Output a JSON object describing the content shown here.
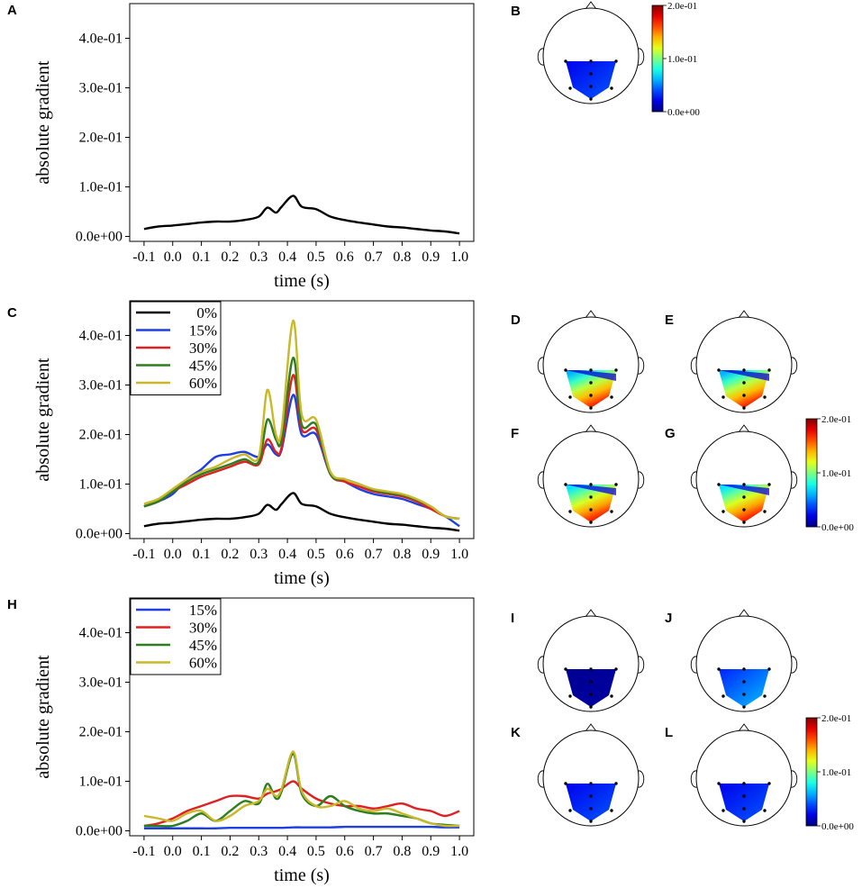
{
  "panels": {
    "A": "A",
    "B": "B",
    "C": "C",
    "D": "D",
    "E": "E",
    "F": "F",
    "G": "G",
    "H": "H",
    "I": "I",
    "J": "J",
    "K": "K",
    "L": "L"
  },
  "colorbar": {
    "ticks": [
      "2.0e-01",
      "1.0e-01",
      "0.0e+00"
    ],
    "range": [
      0,
      0.2
    ]
  },
  "chart_data": [
    {
      "id": "A",
      "type": "line",
      "xlabel": "time (s)",
      "ylabel": "absolute gradient",
      "xlim": [
        -0.15,
        1.05
      ],
      "ylim": [
        -0.01,
        0.47
      ],
      "xticks": [
        -0.1,
        0.0,
        0.1,
        0.2,
        0.3,
        0.4,
        0.5,
        0.6,
        0.7,
        0.8,
        0.9,
        1.0
      ],
      "xtick_labels": [
        "-0.1",
        "0.0",
        "0.1",
        "0.2",
        "0.3",
        "0.4",
        "0.5",
        "0.6",
        "0.7",
        "0.8",
        "0.9",
        "1.0"
      ],
      "yticks": [
        0.0,
        0.1,
        0.2,
        0.3,
        0.4
      ],
      "ytick_labels": [
        "0.0e+00",
        "1.0e-01",
        "2.0e-01",
        "3.0e-01",
        "4.0e-01"
      ],
      "x": [
        -0.1,
        -0.05,
        0.0,
        0.05,
        0.1,
        0.15,
        0.2,
        0.25,
        0.3,
        0.33,
        0.36,
        0.38,
        0.42,
        0.45,
        0.5,
        0.55,
        0.6,
        0.65,
        0.7,
        0.75,
        0.8,
        0.85,
        0.9,
        0.95,
        1.0
      ],
      "series": [
        {
          "name": "0%",
          "color": "#000000",
          "values": [
            0.015,
            0.02,
            0.022,
            0.025,
            0.028,
            0.03,
            0.03,
            0.033,
            0.04,
            0.058,
            0.048,
            0.06,
            0.082,
            0.06,
            0.055,
            0.04,
            0.033,
            0.028,
            0.024,
            0.02,
            0.018,
            0.015,
            0.012,
            0.01,
            0.006
          ]
        }
      ]
    },
    {
      "id": "C",
      "type": "line",
      "xlabel": "time (s)",
      "ylabel": "absolute gradient",
      "xlim": [
        -0.15,
        1.05
      ],
      "ylim": [
        -0.01,
        0.47
      ],
      "xticks": [
        -0.1,
        0.0,
        0.1,
        0.2,
        0.3,
        0.4,
        0.5,
        0.6,
        0.7,
        0.8,
        0.9,
        1.0
      ],
      "xtick_labels": [
        "-0.1",
        "0.0",
        "0.1",
        "0.2",
        "0.3",
        "0.4",
        "0.5",
        "0.6",
        "0.7",
        "0.8",
        "0.9",
        "1.0"
      ],
      "yticks": [
        0.0,
        0.1,
        0.2,
        0.3,
        0.4
      ],
      "ytick_labels": [
        "0.0e+00",
        "1.0e-01",
        "2.0e-01",
        "3.0e-01",
        "4.0e-01"
      ],
      "legend": "top-left",
      "x": [
        -0.1,
        -0.05,
        0.0,
        0.05,
        0.1,
        0.15,
        0.2,
        0.25,
        0.3,
        0.33,
        0.36,
        0.38,
        0.42,
        0.45,
        0.5,
        0.55,
        0.6,
        0.65,
        0.7,
        0.75,
        0.8,
        0.85,
        0.9,
        0.95,
        1.0
      ],
      "series": [
        {
          "name": "0%",
          "color": "#000000",
          "values": [
            0.015,
            0.02,
            0.022,
            0.025,
            0.028,
            0.03,
            0.03,
            0.033,
            0.04,
            0.058,
            0.048,
            0.06,
            0.082,
            0.06,
            0.055,
            0.04,
            0.033,
            0.028,
            0.024,
            0.02,
            0.018,
            0.015,
            0.012,
            0.01,
            0.006
          ]
        },
        {
          "name": "15%",
          "color": "#1f3fe0",
          "values": [
            0.055,
            0.065,
            0.08,
            0.11,
            0.13,
            0.155,
            0.16,
            0.165,
            0.155,
            0.18,
            0.16,
            0.17,
            0.28,
            0.2,
            0.2,
            0.12,
            0.105,
            0.09,
            0.08,
            0.075,
            0.07,
            0.06,
            0.05,
            0.035,
            0.015
          ]
        },
        {
          "name": "30%",
          "color": "#e02020",
          "values": [
            0.055,
            0.065,
            0.085,
            0.1,
            0.115,
            0.125,
            0.135,
            0.145,
            0.14,
            0.19,
            0.165,
            0.175,
            0.32,
            0.21,
            0.21,
            0.12,
            0.105,
            0.095,
            0.085,
            0.08,
            0.075,
            0.065,
            0.05,
            0.035,
            0.03
          ]
        },
        {
          "name": "45%",
          "color": "#2e7d1f",
          "values": [
            0.055,
            0.065,
            0.085,
            0.105,
            0.12,
            0.13,
            0.14,
            0.15,
            0.145,
            0.23,
            0.19,
            0.19,
            0.355,
            0.22,
            0.22,
            0.12,
            0.11,
            0.1,
            0.088,
            0.082,
            0.078,
            0.068,
            0.055,
            0.035,
            0.03
          ]
        },
        {
          "name": "60%",
          "color": "#c8b82a",
          "values": [
            0.06,
            0.07,
            0.09,
            0.11,
            0.125,
            0.135,
            0.15,
            0.16,
            0.155,
            0.29,
            0.2,
            0.21,
            0.43,
            0.24,
            0.23,
            0.125,
            0.11,
            0.1,
            0.09,
            0.085,
            0.08,
            0.07,
            0.055,
            0.035,
            0.03
          ]
        }
      ]
    },
    {
      "id": "H",
      "type": "line",
      "xlabel": "time (s)",
      "ylabel": "absolute gradient",
      "xlim": [
        -0.15,
        1.05
      ],
      "ylim": [
        -0.01,
        0.47
      ],
      "xticks": [
        -0.1,
        0.0,
        0.1,
        0.2,
        0.3,
        0.4,
        0.5,
        0.6,
        0.7,
        0.8,
        0.9,
        1.0
      ],
      "xtick_labels": [
        "-0.1",
        "0.0",
        "0.1",
        "0.2",
        "0.3",
        "0.4",
        "0.5",
        "0.6",
        "0.7",
        "0.8",
        "0.9",
        "1.0"
      ],
      "yticks": [
        0.0,
        0.1,
        0.2,
        0.3,
        0.4
      ],
      "ytick_labels": [
        "0.0e+00",
        "1.0e-01",
        "2.0e-01",
        "3.0e-01",
        "4.0e-01"
      ],
      "legend": "top-left",
      "x": [
        -0.1,
        -0.05,
        0.0,
        0.05,
        0.1,
        0.15,
        0.2,
        0.25,
        0.3,
        0.33,
        0.36,
        0.38,
        0.42,
        0.45,
        0.5,
        0.55,
        0.6,
        0.65,
        0.7,
        0.75,
        0.8,
        0.85,
        0.9,
        0.95,
        1.0
      ],
      "series": [
        {
          "name": "15%",
          "color": "#1f3fe0",
          "values": [
            0.005,
            0.005,
            0.005,
            0.005,
            0.005,
            0.005,
            0.006,
            0.006,
            0.006,
            0.006,
            0.006,
            0.006,
            0.007,
            0.007,
            0.007,
            0.007,
            0.008,
            0.008,
            0.008,
            0.008,
            0.008,
            0.008,
            0.008,
            0.007,
            0.007
          ]
        },
        {
          "name": "30%",
          "color": "#e02020",
          "values": [
            0.01,
            0.015,
            0.025,
            0.04,
            0.05,
            0.06,
            0.07,
            0.07,
            0.065,
            0.075,
            0.08,
            0.085,
            0.1,
            0.085,
            0.065,
            0.055,
            0.05,
            0.05,
            0.045,
            0.05,
            0.055,
            0.045,
            0.04,
            0.03,
            0.04
          ]
        },
        {
          "name": "45%",
          "color": "#2e7d1f",
          "values": [
            0.01,
            0.01,
            0.01,
            0.02,
            0.035,
            0.02,
            0.04,
            0.06,
            0.055,
            0.095,
            0.065,
            0.08,
            0.155,
            0.075,
            0.05,
            0.07,
            0.05,
            0.04,
            0.035,
            0.035,
            0.03,
            0.025,
            0.015,
            0.012,
            0.01
          ]
        },
        {
          "name": "60%",
          "color": "#c8b82a",
          "values": [
            0.03,
            0.025,
            0.02,
            0.035,
            0.04,
            0.02,
            0.03,
            0.05,
            0.06,
            0.085,
            0.07,
            0.085,
            0.16,
            0.08,
            0.05,
            0.05,
            0.06,
            0.045,
            0.04,
            0.045,
            0.035,
            0.025,
            0.015,
            0.01,
            0.01
          ]
        }
      ]
    },
    {
      "id": "topomaps",
      "type": "heatmap",
      "colorbar_range": [
        0,
        0.2
      ],
      "maps": [
        {
          "id": "B",
          "style": "uniform",
          "base": 0.03,
          "hot": 0.0
        },
        {
          "id": "D",
          "style": "gradient",
          "base": 0.06,
          "hot": 0.19
        },
        {
          "id": "E",
          "style": "gradient",
          "base": 0.06,
          "hot": 0.19
        },
        {
          "id": "F",
          "style": "gradient",
          "base": 0.07,
          "hot": 0.19
        },
        {
          "id": "G",
          "style": "gradient",
          "base": 0.07,
          "hot": 0.19
        },
        {
          "id": "I",
          "style": "uniform",
          "base": 0.005,
          "hot": 0.0
        },
        {
          "id": "J",
          "style": "uniform",
          "base": 0.045,
          "hot": 0.0
        },
        {
          "id": "K",
          "style": "uniform",
          "base": 0.03,
          "hot": 0.0
        },
        {
          "id": "L",
          "style": "uniform",
          "base": 0.03,
          "hot": 0.0
        }
      ]
    }
  ]
}
